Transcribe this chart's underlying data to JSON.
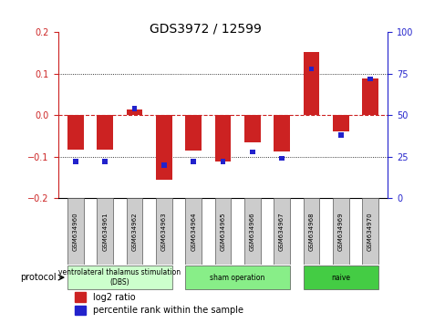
{
  "title": "GDS3972 / 12599",
  "samples": [
    "GSM634960",
    "GSM634961",
    "GSM634962",
    "GSM634963",
    "GSM634964",
    "GSM634965",
    "GSM634966",
    "GSM634967",
    "GSM634968",
    "GSM634969",
    "GSM634970"
  ],
  "log2_ratio": [
    -0.083,
    -0.083,
    0.013,
    -0.155,
    -0.085,
    -0.112,
    -0.065,
    -0.088,
    0.152,
    -0.038,
    0.088
  ],
  "percentile_rank": [
    22,
    22,
    54,
    20,
    22,
    22,
    28,
    24,
    78,
    38,
    72
  ],
  "ylim_left": [
    -0.2,
    0.2
  ],
  "ylim_right": [
    0,
    100
  ],
  "yticks_left": [
    -0.2,
    -0.1,
    0.0,
    0.1,
    0.2
  ],
  "yticks_right": [
    0,
    25,
    50,
    75,
    100
  ],
  "bar_color_red": "#cc2222",
  "bar_color_blue": "#2222cc",
  "zero_line_color": "#cc2222",
  "dotted_line_color": "#000000",
  "protocol_label": "protocol",
  "legend_red": "log2 ratio",
  "legend_blue": "percentile rank within the sample",
  "bar_width": 0.55,
  "blue_bar_height": 0.012,
  "group_ranges": [
    [
      0,
      4
    ],
    [
      4,
      8
    ],
    [
      8,
      11
    ]
  ],
  "group_colors": [
    "#ccffcc",
    "#88ee88",
    "#44cc44"
  ],
  "group_labels": [
    "ventrolateral thalamus stimulation\n(DBS)",
    "sham operation",
    "naive"
  ]
}
